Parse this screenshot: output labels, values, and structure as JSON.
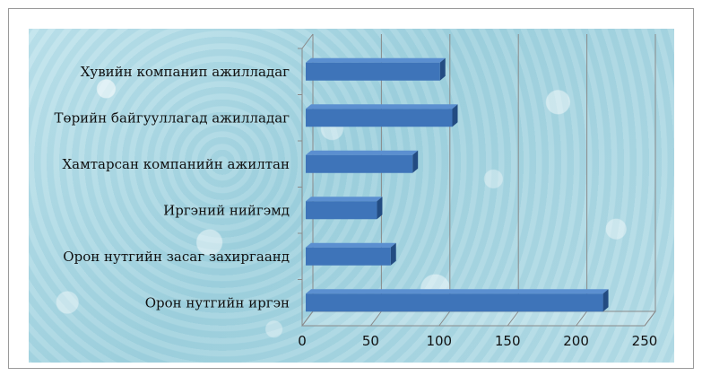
{
  "chart_data": {
    "type": "bar",
    "orientation": "horizontal",
    "categories": [
      "Хувийн компанип ажилладаг",
      "Төрийн байгууллагад ажилладаг",
      "Хамтарсан компанийн ажилтан",
      "Иргэний нийгэмд",
      "Орон нутгийн засаг захиргаанд",
      "Орон нутгийн иргэн"
    ],
    "values": [
      98,
      107,
      78,
      52,
      62,
      217
    ],
    "xlim": [
      0,
      250
    ],
    "x_ticks": [
      "0",
      "50",
      "100",
      "150",
      "200",
      "250"
    ],
    "grid": "vertical",
    "bar_color": "#3e74b9"
  }
}
